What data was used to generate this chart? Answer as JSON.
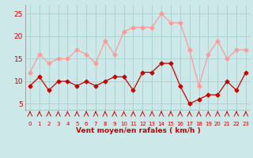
{
  "x": [
    0,
    1,
    2,
    3,
    4,
    5,
    6,
    7,
    8,
    9,
    10,
    11,
    12,
    13,
    14,
    15,
    16,
    17,
    18,
    19,
    20,
    21,
    22,
    23
  ],
  "wind_avg": [
    9,
    11,
    8,
    10,
    10,
    9,
    10,
    9,
    10,
    11,
    11,
    8,
    12,
    12,
    14,
    14,
    9,
    5,
    6,
    7,
    7,
    10,
    8,
    12
  ],
  "wind_gust": [
    12,
    16,
    14,
    15,
    15,
    17,
    16,
    14,
    19,
    16,
    21,
    22,
    22,
    22,
    25,
    23,
    23,
    17,
    9,
    16,
    19,
    15,
    17,
    17
  ],
  "bg_color": "#cce8e8",
  "grid_color": "#aad0d0",
  "avg_color": "#cc0000",
  "gust_color": "#ff9999",
  "xlabel": "Vent moyen/en rafales ( km/h )",
  "xlabel_color": "#cc0000",
  "tick_color": "#cc0000",
  "yticks": [
    5,
    10,
    15,
    20,
    25
  ],
  "ylim": [
    3.5,
    27
  ],
  "xlim": [
    -0.5,
    23.5
  ]
}
